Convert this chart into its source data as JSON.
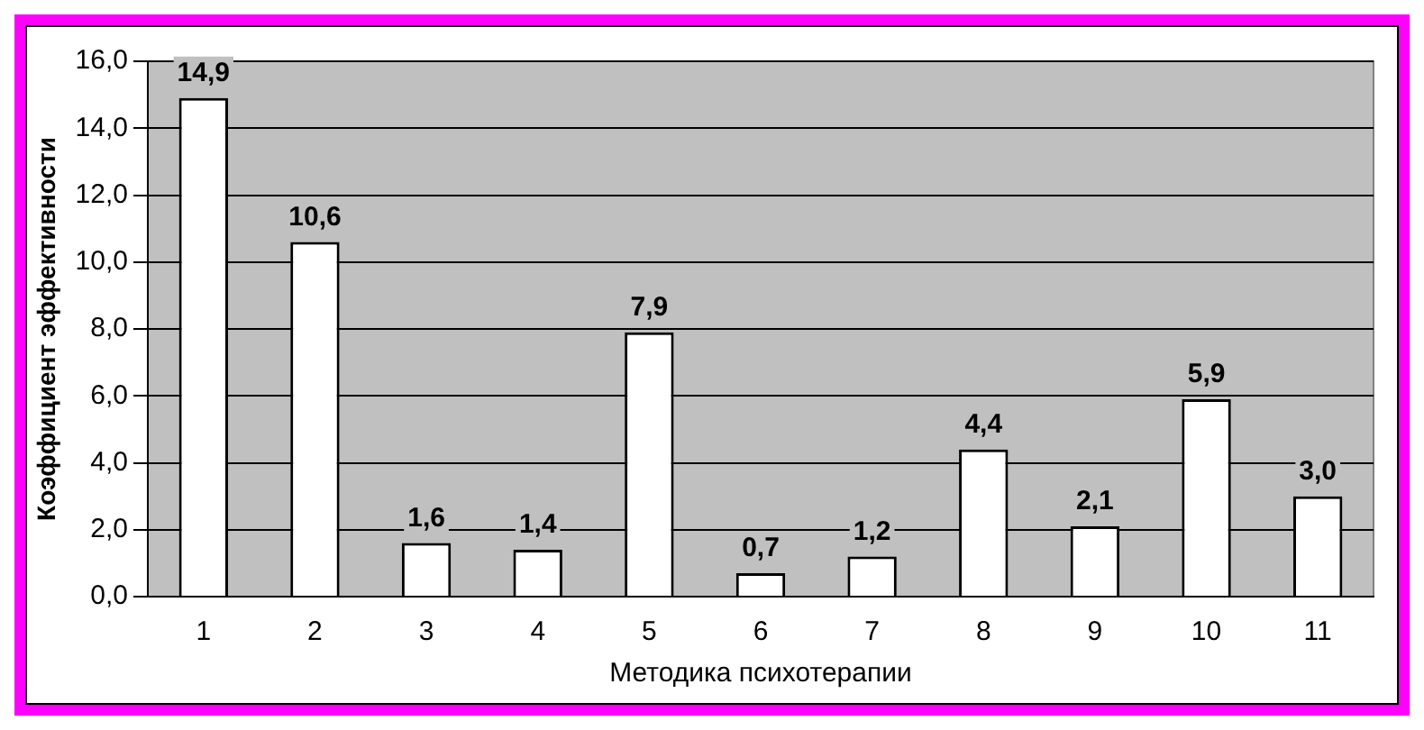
{
  "chart_data": {
    "type": "bar",
    "xlabel": "Методика психотерапии",
    "ylabel": "Коэффициент эффективности",
    "categories": [
      "1",
      "2",
      "3",
      "4",
      "5",
      "6",
      "7",
      "8",
      "9",
      "10",
      "11"
    ],
    "values": [
      14.9,
      10.6,
      1.6,
      1.4,
      7.9,
      0.7,
      1.2,
      4.4,
      2.1,
      5.9,
      3.0
    ],
    "value_labels": [
      "14,9",
      "10,6",
      "1,6",
      "1,4",
      "7,9",
      "0,7",
      "1,2",
      "4,4",
      "2,1",
      "5,9",
      "3,0"
    ],
    "color": "#ffffff",
    "ylim": [
      0,
      16
    ],
    "yticks": [
      {
        "value": 0,
        "label": "0,0"
      },
      {
        "value": 2,
        "label": "2,0"
      },
      {
        "value": 4,
        "label": "4,0"
      },
      {
        "value": 6,
        "label": "6,0"
      },
      {
        "value": 8,
        "label": "8,0"
      },
      {
        "value": 10,
        "label": "10,0"
      },
      {
        "value": 12,
        "label": "12,0"
      },
      {
        "value": 14,
        "label": "14,0"
      },
      {
        "value": 16,
        "label": "16,0"
      }
    ],
    "grid": "y",
    "legend": false
  }
}
